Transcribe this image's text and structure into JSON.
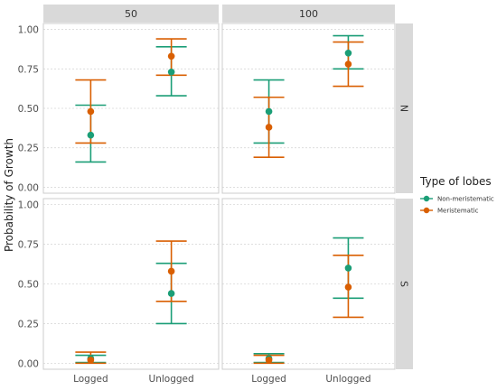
{
  "chart_data": {
    "type": "errorbar",
    "ylabel": "Probability of Growth",
    "xlabel": "",
    "categories": [
      "Logged",
      "Unlogged"
    ],
    "y_ticks": [
      "0.00",
      "0.25",
      "0.50",
      "0.75",
      "1.00"
    ],
    "ylim": [
      0,
      1
    ],
    "column_facets": [
      "50",
      "100"
    ],
    "row_facets": [
      "N",
      "S"
    ],
    "legend": {
      "title": "Type of lobes",
      "position": "right",
      "items": [
        {
          "name": "Non-meristematic",
          "color": "#1b9e77"
        },
        {
          "name": "Meristematic",
          "color": "#d95f02"
        }
      ]
    },
    "grid": true,
    "panels": [
      {
        "col": "50",
        "row": "N",
        "series": [
          {
            "name": "Non-meristematic",
            "points": [
              {
                "x": "Logged",
                "y": 0.33,
                "lower": 0.16,
                "upper": 0.52
              },
              {
                "x": "Unlogged",
                "y": 0.73,
                "lower": 0.58,
                "upper": 0.89
              }
            ]
          },
          {
            "name": "Meristematic",
            "points": [
              {
                "x": "Logged",
                "y": 0.48,
                "lower": 0.28,
                "upper": 0.68
              },
              {
                "x": "Unlogged",
                "y": 0.83,
                "lower": 0.71,
                "upper": 0.94
              }
            ]
          }
        ]
      },
      {
        "col": "100",
        "row": "N",
        "series": [
          {
            "name": "Non-meristematic",
            "points": [
              {
                "x": "Logged",
                "y": 0.48,
                "lower": 0.28,
                "upper": 0.68
              },
              {
                "x": "Unlogged",
                "y": 0.85,
                "lower": 0.75,
                "upper": 0.96
              }
            ]
          },
          {
            "name": "Meristematic",
            "points": [
              {
                "x": "Logged",
                "y": 0.38,
                "lower": 0.19,
                "upper": 0.57
              },
              {
                "x": "Unlogged",
                "y": 0.78,
                "lower": 0.64,
                "upper": 0.92
              }
            ]
          }
        ]
      },
      {
        "col": "50",
        "row": "S",
        "series": [
          {
            "name": "Non-meristematic",
            "points": [
              {
                "x": "Logged",
                "y": 0.03,
                "lower": 0.005,
                "upper": 0.05
              },
              {
                "x": "Unlogged",
                "y": 0.44,
                "lower": 0.25,
                "upper": 0.63
              }
            ]
          },
          {
            "name": "Meristematic",
            "points": [
              {
                "x": "Logged",
                "y": 0.02,
                "lower": 0.0,
                "upper": 0.07
              },
              {
                "x": "Unlogged",
                "y": 0.58,
                "lower": 0.39,
                "upper": 0.77
              }
            ]
          }
        ]
      },
      {
        "col": "100",
        "row": "S",
        "series": [
          {
            "name": "Non-meristematic",
            "points": [
              {
                "x": "Logged",
                "y": 0.03,
                "lower": 0.005,
                "upper": 0.06
              },
              {
                "x": "Unlogged",
                "y": 0.6,
                "lower": 0.41,
                "upper": 0.79
              }
            ]
          },
          {
            "name": "Meristematic",
            "points": [
              {
                "x": "Logged",
                "y": 0.02,
                "lower": 0.0,
                "upper": 0.05
              },
              {
                "x": "Unlogged",
                "y": 0.48,
                "lower": 0.29,
                "upper": 0.68
              }
            ]
          }
        ]
      }
    ]
  }
}
